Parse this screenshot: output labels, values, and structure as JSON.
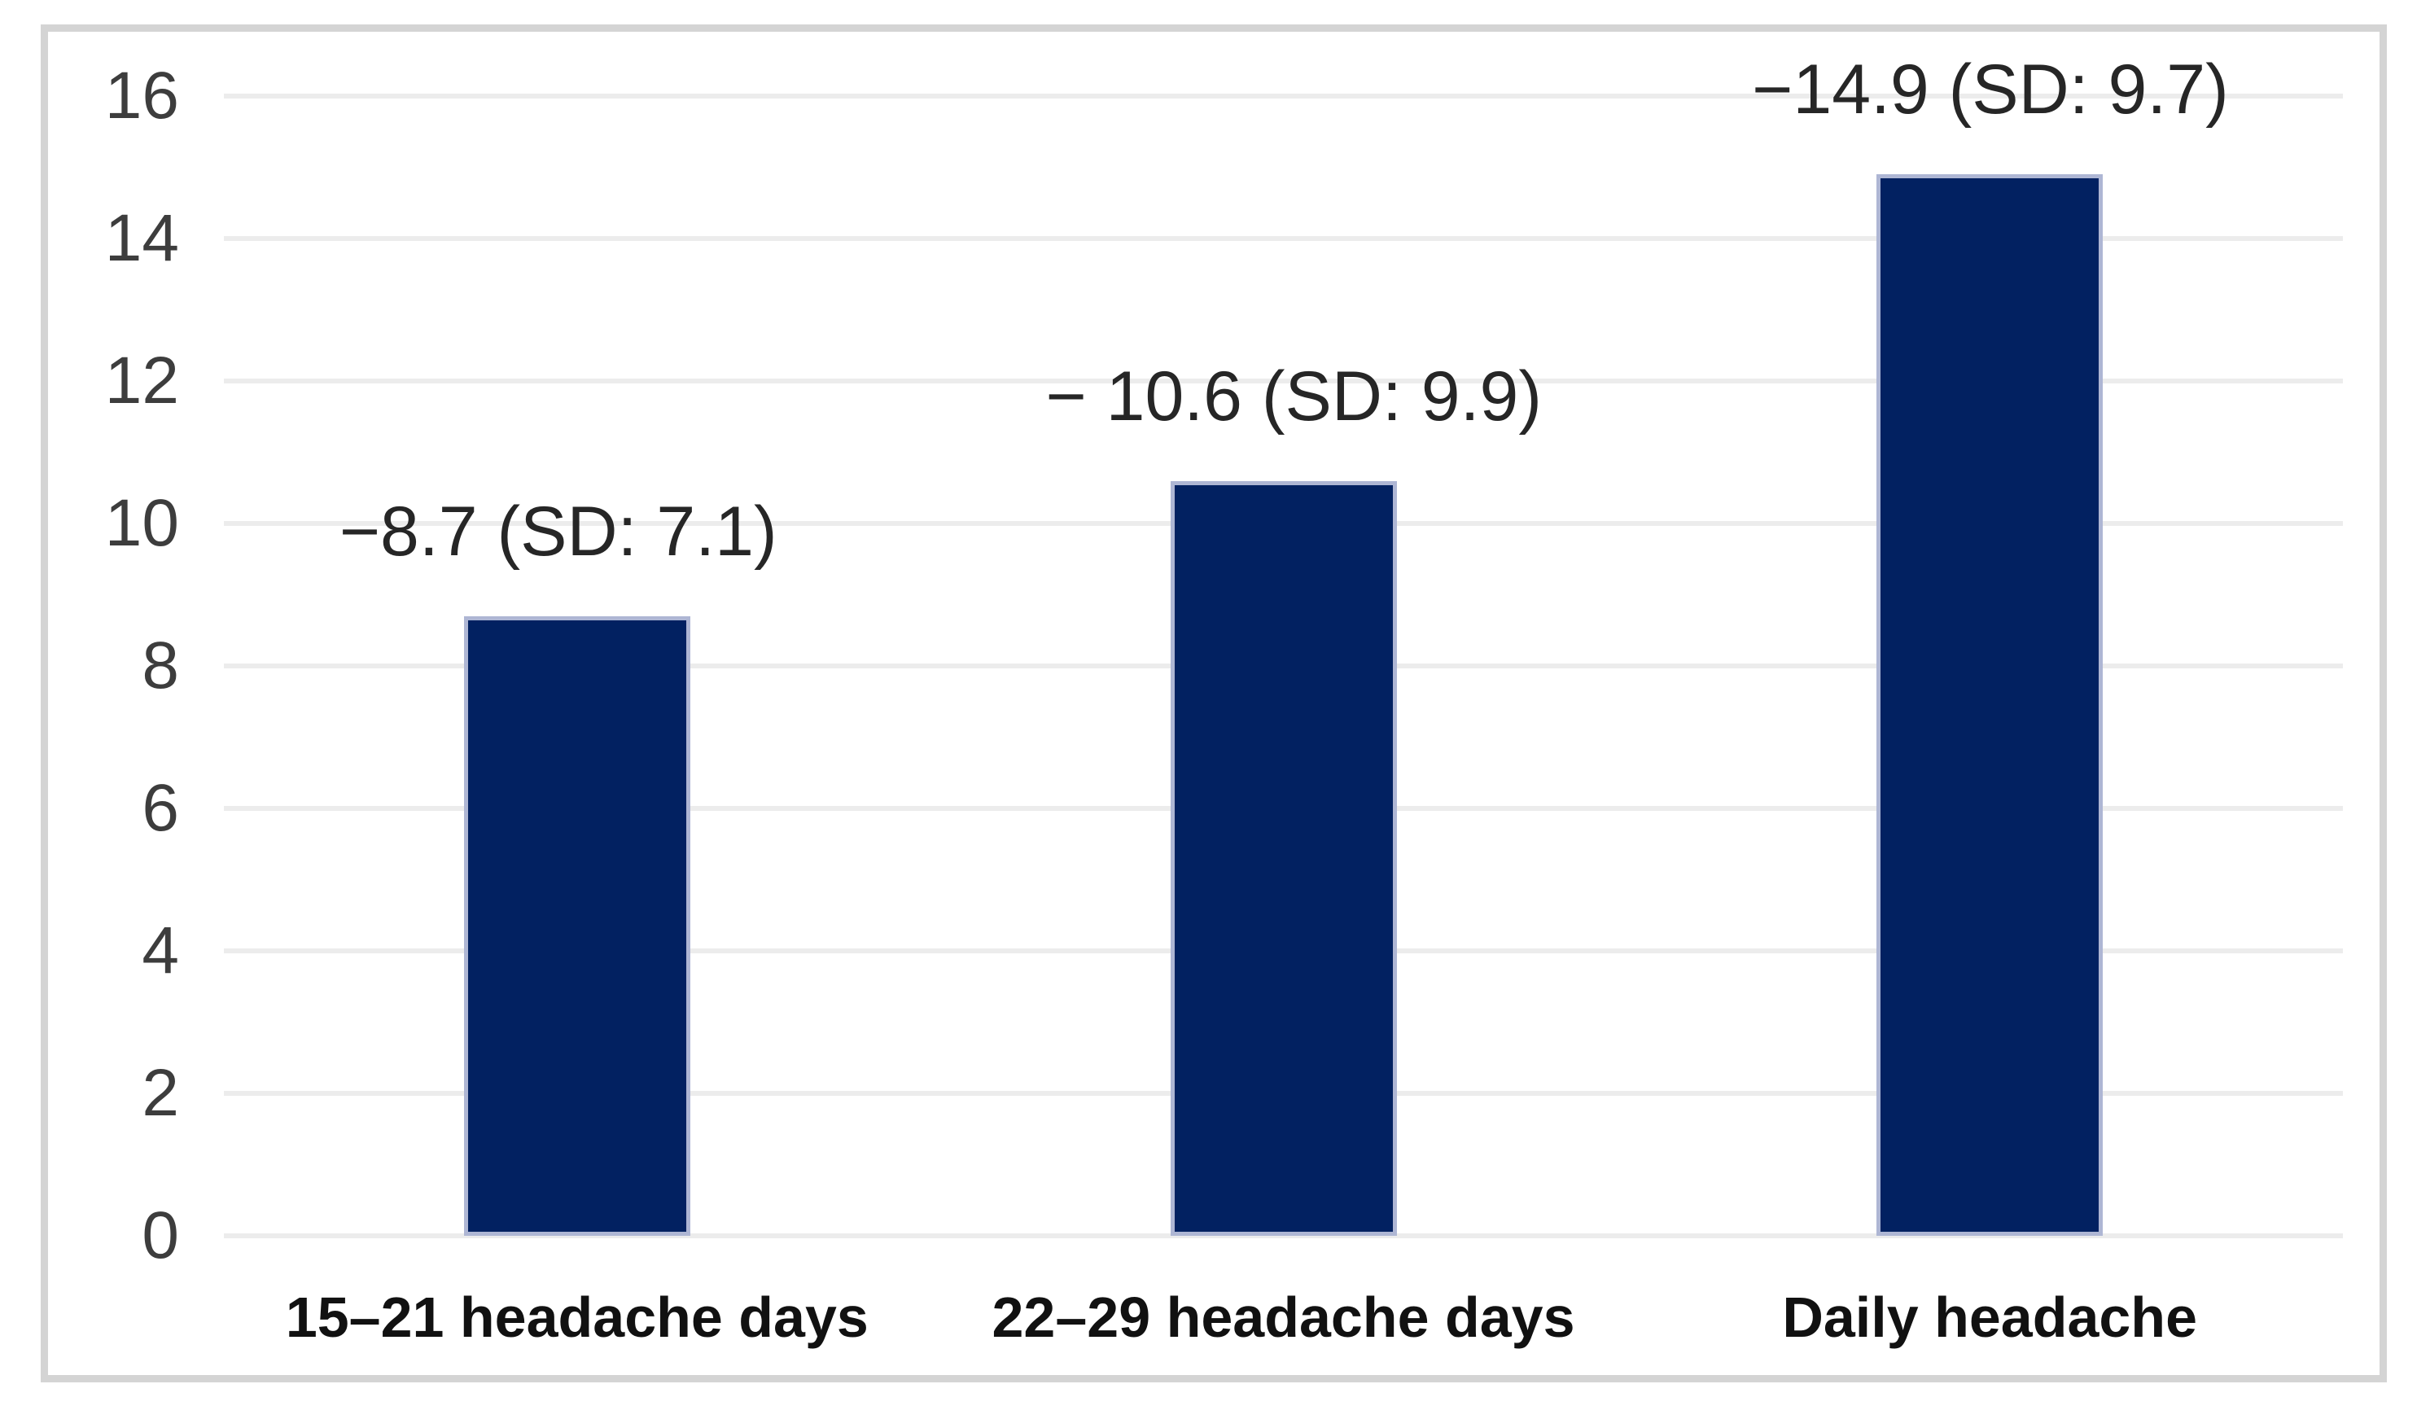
{
  "figure": {
    "background": "#ffffff",
    "frame_border_color": "#d4d4d4"
  },
  "chart_data": {
    "type": "bar",
    "title": "",
    "xlabel": "",
    "ylabel": "",
    "categories": [
      "15–21 headache days",
      "22–29 headache days",
      "Daily headache"
    ],
    "values": [
      8.7,
      10.6,
      14.9
    ],
    "sd": [
      7.1,
      9.9,
      9.7
    ],
    "data_labels": [
      "−8.7 (SD: 7.1)",
      "− 10.6 (SD: 9.9)",
      "−14.9 (SD: 9.7)"
    ],
    "ylim": [
      0,
      16
    ],
    "yticks": [
      0,
      2,
      4,
      6,
      8,
      10,
      12,
      14,
      16
    ],
    "grid": true,
    "legend": false,
    "bar_color": "#022161",
    "bar_border_color": "#aeb6d4",
    "gridline_color": "#ececec",
    "tick_label_color": "#3d3d3d",
    "data_label_color": "#262626",
    "category_label_color": "#111111"
  }
}
